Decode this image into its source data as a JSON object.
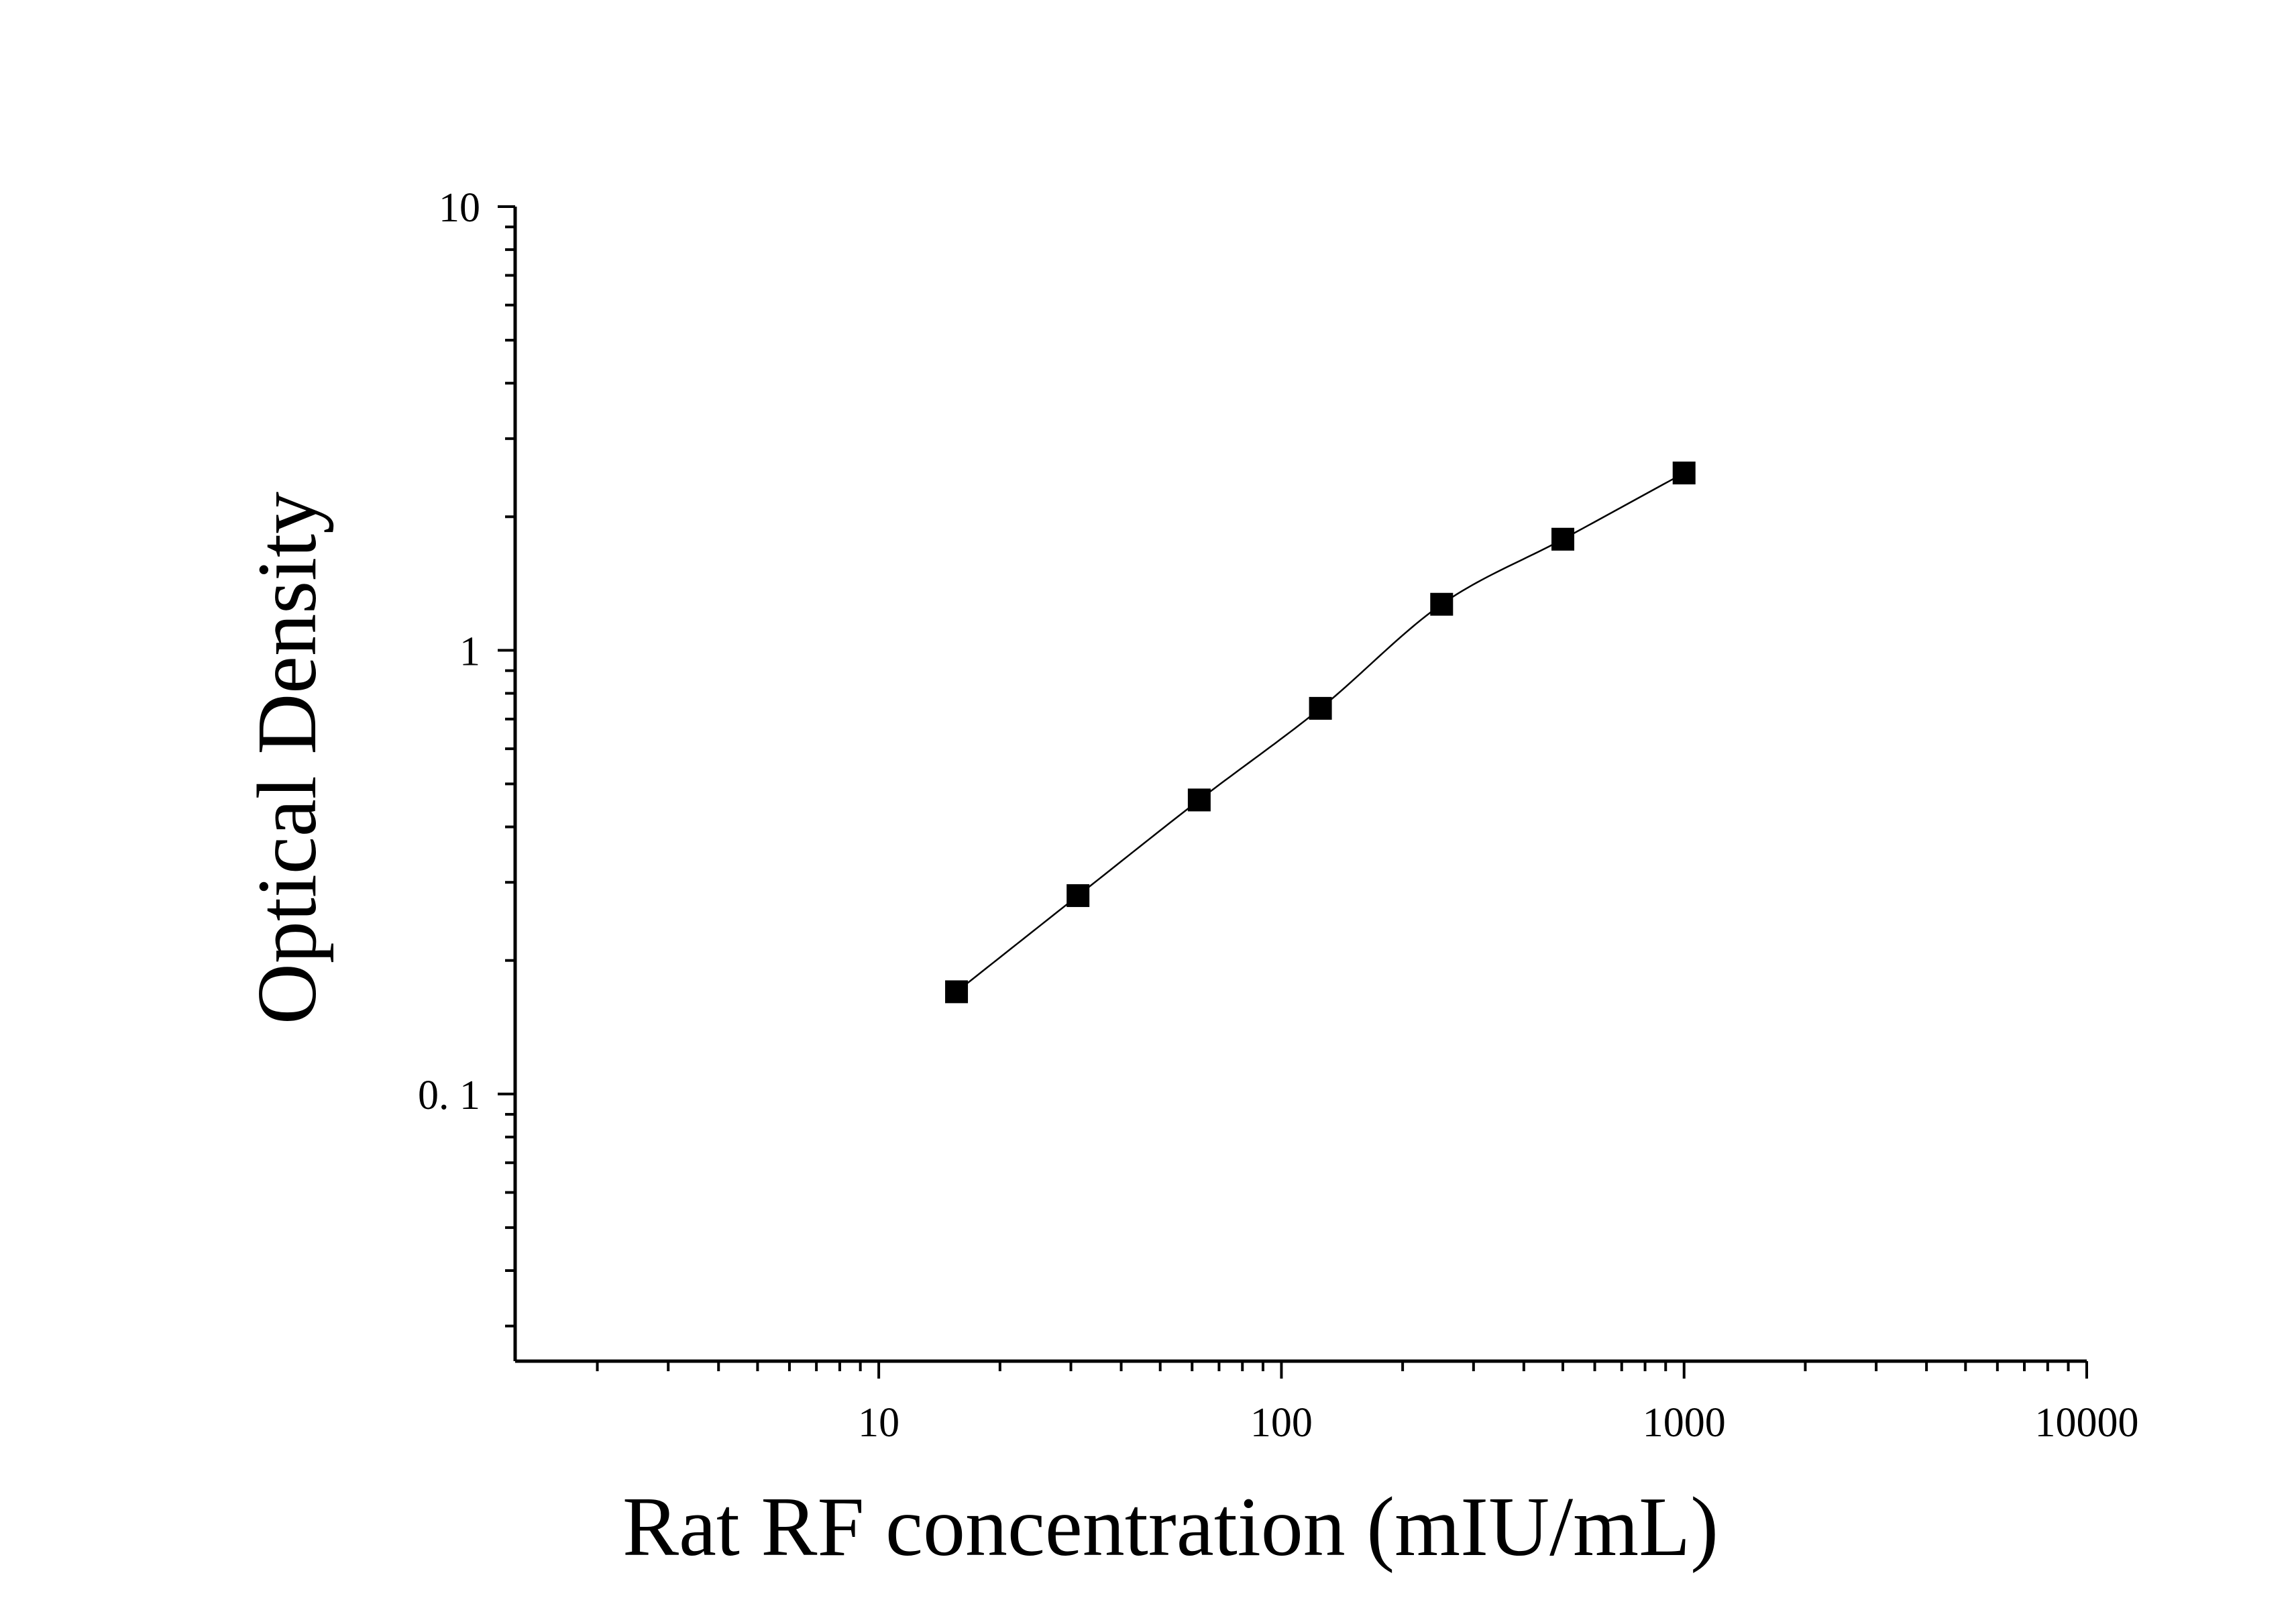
{
  "chart_data": {
    "type": "scatter",
    "title": "",
    "xlabel": "Rat RF concentration (mIU/mL)",
    "ylabel": "Optical Density",
    "x_scale": "log",
    "y_scale": "log",
    "xlim": [
      1.25,
      10000
    ],
    "ylim": [
      0.025,
      10
    ],
    "x_tick_labels": [
      "10",
      "100",
      "1000",
      "10000"
    ],
    "x_tick_values": [
      10,
      100,
      1000,
      10000
    ],
    "y_tick_labels": [
      "0. 1",
      "1",
      "10"
    ],
    "y_tick_values": [
      0.1,
      1,
      10
    ],
    "grid": false,
    "legend": "none",
    "marker": "square",
    "series": [
      {
        "x": [
          15.6,
          31.25,
          62.5,
          125,
          250,
          500,
          1000
        ],
        "y": [
          0.17,
          0.28,
          0.46,
          0.74,
          1.27,
          1.78,
          2.51
        ]
      }
    ],
    "colors": {
      "marker": "#000000",
      "line": "#000000",
      "axis": "#000000"
    }
  }
}
